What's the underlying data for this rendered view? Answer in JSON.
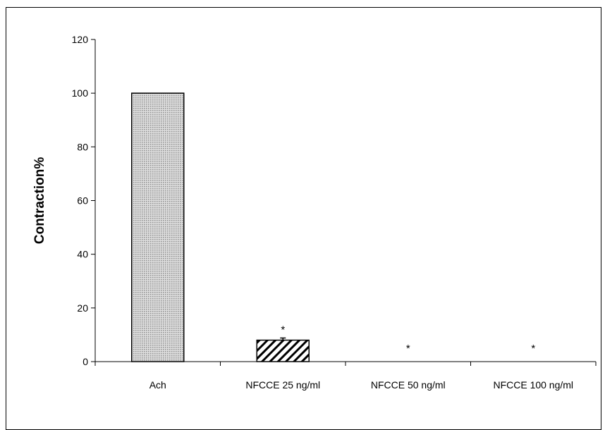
{
  "chart_data": {
    "type": "bar",
    "categories": [
      "Ach",
      "NFCCE 25 ng/ml",
      "NFCCE 50 ng/ml",
      "NFCCE 100 ng/ml"
    ],
    "values": [
      100,
      8,
      0,
      0
    ],
    "errors": [
      0,
      0.8,
      0,
      0
    ],
    "significance": [
      "",
      "*",
      "*",
      "*"
    ],
    "ylabel": "Contraction%",
    "ylim": [
      0,
      120
    ],
    "yticks": [
      0,
      20,
      40,
      60,
      80,
      100,
      120
    ],
    "grid": false,
    "legend": "none",
    "fills": [
      "dotted-gray",
      "diagonal-hatch",
      "none",
      "none"
    ],
    "colors": {
      "axis": "#000000",
      "text": "#000000",
      "bar_stroke": "#000000",
      "dot_fill": "#b5b5b5",
      "hatch": "#000000"
    }
  }
}
